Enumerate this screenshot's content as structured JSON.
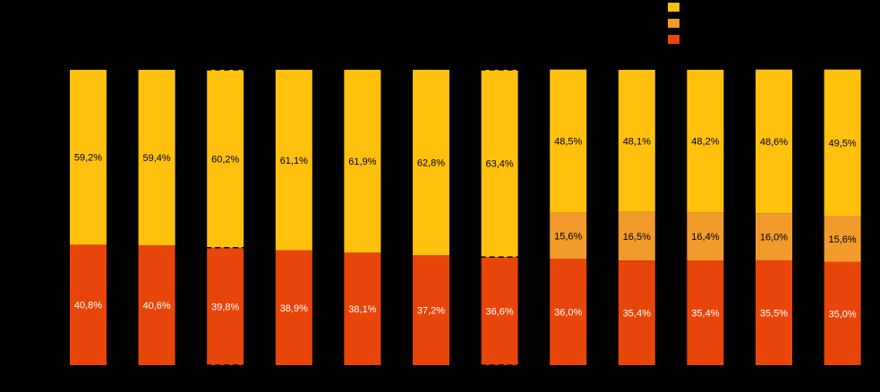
{
  "chart_data": {
    "type": "bar",
    "stacked": true,
    "normalized": true,
    "categories": [
      "",
      "",
      "",
      "",
      "",
      "",
      "",
      "",
      "",
      "",
      "",
      ""
    ],
    "highlighted_bars": [
      2,
      6
    ],
    "series": [
      {
        "color": "#E8450A",
        "label_color": "#FFFFFF",
        "values": [
          40.8,
          40.6,
          39.8,
          38.9,
          38.1,
          37.2,
          36.6,
          36.0,
          35.4,
          35.4,
          35.5,
          35.0
        ],
        "labels": [
          "40,8%",
          "40,6%",
          "39,8%",
          "38,9%",
          "38,1%",
          "37,2%",
          "36,6%",
          "36,0%",
          "35,4%",
          "35,4%",
          "35,5%",
          "35,0%"
        ]
      },
      {
        "color": "#F39A2C",
        "label_color": "#000000",
        "values": [
          0,
          0,
          0,
          0,
          0,
          0,
          0,
          15.6,
          16.5,
          16.4,
          16.0,
          15.6
        ],
        "labels": [
          "",
          "",
          "",
          "",
          "",
          "",
          "",
          "15,6%",
          "16,5%",
          "16,4%",
          "16,0%",
          "15,6%"
        ]
      },
      {
        "color": "#FFC10E",
        "label_color": "#000000",
        "values": [
          59.2,
          59.4,
          60.2,
          61.1,
          61.9,
          62.8,
          63.4,
          48.5,
          48.1,
          48.2,
          48.6,
          49.5
        ],
        "labels": [
          "59,2%",
          "59,4%",
          "60,2%",
          "61,1%",
          "61,9%",
          "62,8%",
          "63,4%",
          "48,5%",
          "48,1%",
          "48,2%",
          "48,6%",
          "49,5%"
        ]
      }
    ],
    "legend_placement": "top-right",
    "grid": false,
    "background": "#000000"
  }
}
